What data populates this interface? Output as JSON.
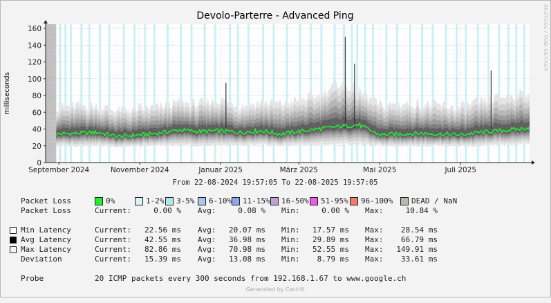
{
  "title": "Devolo-Parterre - Advanced Ping",
  "ylabel": "milliseconds",
  "period_text": "From 22-08-2024 19:57:05 To 22-08-2025 19:57:05",
  "side_label": "RRDTOOL / TOBI OETIKER",
  "footer": "Generated by Cacti®",
  "colors": {
    "latency_line": "#22ee33",
    "dead_area": "#c0c0c0",
    "loss_marker": "#bff0f4",
    "grid": "#cc9999"
  },
  "chart_data": {
    "type": "area",
    "title": "Devolo-Parterre - Advanced Ping",
    "ylabel": "milliseconds",
    "xlabel": "",
    "ylim": [
      0,
      165
    ],
    "yticks": [
      0,
      20,
      40,
      60,
      80,
      100,
      120,
      140,
      160
    ],
    "x_range": [
      "2024-08-22",
      "2025-08-22"
    ],
    "x_ticks": [
      {
        "date": "2024-09-01",
        "label": "September 2024"
      },
      {
        "date": "2024-11-01",
        "label": "November 2024"
      },
      {
        "date": "2025-01-01",
        "label": "Januar 2025"
      },
      {
        "date": "2025-03-01",
        "label": "März 2025"
      },
      {
        "date": "2025-05-01",
        "label": "Mai 2025"
      },
      {
        "date": "2025-07-01",
        "label": "Juli 2025"
      }
    ],
    "dead_period": [
      "2024-08-22",
      "2024-08-30"
    ],
    "grid": true,
    "series": [
      {
        "name": "Avg Latency",
        "x": [
          "2024-08-30",
          "2024-09-15",
          "2024-10-01",
          "2024-10-15",
          "2024-11-01",
          "2024-11-15",
          "2024-12-01",
          "2024-12-15",
          "2025-01-01",
          "2025-01-15",
          "2025-02-01",
          "2025-02-15",
          "2025-03-01",
          "2025-03-15",
          "2025-04-01",
          "2025-04-15",
          "2025-05-01",
          "2025-05-15",
          "2025-06-01",
          "2025-06-15",
          "2025-07-01",
          "2025-07-15",
          "2025-08-01",
          "2025-08-15",
          "2025-08-22"
        ],
        "y": [
          34,
          35,
          36,
          31,
          33,
          35,
          39,
          37,
          38,
          36,
          38,
          34,
          37,
          40,
          43,
          45,
          33,
          34,
          35,
          34,
          33,
          36,
          38,
          40,
          42
        ]
      },
      {
        "name": "Max Latency",
        "x": [
          "2024-08-30",
          "2024-09-15",
          "2024-10-01",
          "2024-10-15",
          "2024-11-01",
          "2024-11-15",
          "2024-12-01",
          "2024-12-15",
          "2025-01-01",
          "2025-01-15",
          "2025-02-01",
          "2025-02-15",
          "2025-03-01",
          "2025-03-15",
          "2025-04-01",
          "2025-04-15",
          "2025-05-01",
          "2025-05-15",
          "2025-06-01",
          "2025-06-15",
          "2025-07-01",
          "2025-07-15",
          "2025-08-01",
          "2025-08-15",
          "2025-08-22"
        ],
        "y": [
          66,
          68,
          67,
          62,
          64,
          66,
          72,
          70,
          75,
          68,
          72,
          70,
          74,
          80,
          95,
          85,
          68,
          70,
          70,
          68,
          66,
          72,
          78,
          82,
          83
        ]
      },
      {
        "name": "Min Latency",
        "x": [
          "2024-08-30",
          "2024-09-15",
          "2024-10-01",
          "2024-10-15",
          "2024-11-01",
          "2024-11-15",
          "2024-12-01",
          "2024-12-15",
          "2025-01-01",
          "2025-01-15",
          "2025-02-01",
          "2025-02-15",
          "2025-03-01",
          "2025-03-15",
          "2025-04-01",
          "2025-04-15",
          "2025-05-01",
          "2025-05-15",
          "2025-06-01",
          "2025-06-15",
          "2025-07-01",
          "2025-07-15",
          "2025-08-01",
          "2025-08-15",
          "2025-08-22"
        ],
        "y": [
          20,
          20,
          20,
          19,
          19,
          20,
          21,
          20,
          21,
          20,
          21,
          20,
          21,
          21,
          22,
          22,
          20,
          20,
          20,
          20,
          20,
          20,
          21,
          22,
          23
        ]
      }
    ],
    "spikes": [
      {
        "date": "2025-01-05",
        "value": 95
      },
      {
        "date": "2025-04-05",
        "value": 150
      },
      {
        "date": "2025-04-12",
        "value": 118
      },
      {
        "date": "2025-07-24",
        "value": 110
      }
    ],
    "loss_dates": [
      "2024-09-02",
      "2024-09-06",
      "2024-09-10",
      "2024-09-18",
      "2024-09-24",
      "2024-10-02",
      "2024-10-09",
      "2024-10-20",
      "2024-10-28",
      "2024-11-05",
      "2024-11-12",
      "2024-11-22",
      "2024-12-02",
      "2024-12-10",
      "2024-12-20",
      "2024-12-28",
      "2025-01-08",
      "2025-01-14",
      "2025-01-22",
      "2025-02-02",
      "2025-02-10",
      "2025-02-20",
      "2025-03-02",
      "2025-03-10",
      "2025-03-18",
      "2025-03-28",
      "2025-04-04",
      "2025-04-10",
      "2025-04-14",
      "2025-04-20",
      "2025-04-26",
      "2025-05-06",
      "2025-05-14",
      "2025-05-24",
      "2025-06-02",
      "2025-06-10",
      "2025-06-20",
      "2025-06-28",
      "2025-07-05",
      "2025-07-14",
      "2025-07-22",
      "2025-07-30",
      "2025-08-06",
      "2025-08-12",
      "2025-08-18"
    ]
  },
  "legend": {
    "packet_loss_label": "Packet Loss",
    "loss_categories": [
      {
        "label": "0%",
        "color": "#22ee33"
      },
      {
        "label": "1-2%",
        "color": "#d8f3f4"
      },
      {
        "label": "3-5%",
        "color": "#b2e7e8"
      },
      {
        "label": "6-10%",
        "color": "#a7c8ea"
      },
      {
        "label": "11-15%",
        "color": "#8fa6e8"
      },
      {
        "label": "16-50%",
        "color": "#c19ed6"
      },
      {
        "label": "51-95%",
        "color": "#ee5ae6"
      },
      {
        "label": "96-100%",
        "color": "#f07a6c"
      },
      {
        "label": "DEAD / NaN",
        "color": "#b3bbb1"
      }
    ],
    "stats": [
      {
        "label": "Packet Loss",
        "box": "",
        "current": "0.00 %",
        "avg": "0.08 %",
        "min": "0.00 %",
        "max": "10.84 %"
      },
      {
        "label": "Min Latency",
        "box": "#ffffff",
        "current": "22.56 ms",
        "avg": "20.07 ms",
        "min": "17.57 ms",
        "max": "28.54 ms"
      },
      {
        "label": "Avg Latency",
        "box": "#000000",
        "current": "42.55 ms",
        "avg": "36.98 ms",
        "min": "29.89 ms",
        "max": "66.79 ms"
      },
      {
        "label": "Max Latency",
        "box": "#f4f4ee",
        "current": "82.86 ms",
        "avg": "70.98 ms",
        "min": "52.55 ms",
        "max": "149.91 ms"
      },
      {
        "label": "Deviation",
        "box": "",
        "current": "15.39 ms",
        "avg": "13.08 ms",
        "min": "8.79 ms",
        "max": "33.61 ms"
      }
    ],
    "current_label": "Current:",
    "avg_label": "Avg:",
    "min_label": "Min:",
    "max_label": "Max:",
    "probe_label": "Probe",
    "probe_text": "20 ICMP packets every 300 seconds from 192.168.1.67 to www.google.ch"
  }
}
